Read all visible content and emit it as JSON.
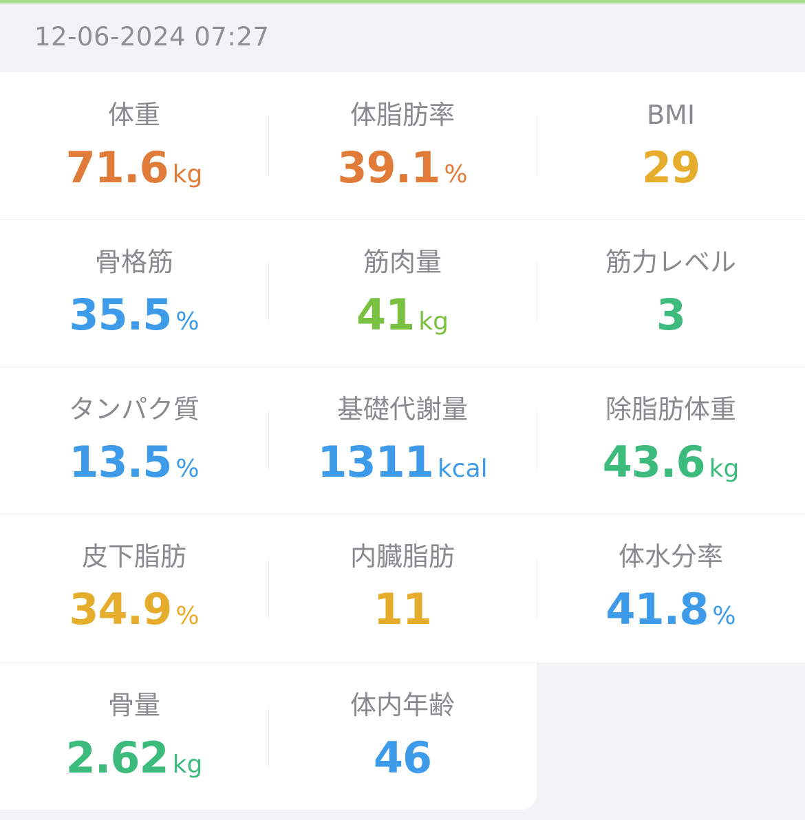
{
  "header": {
    "datetime": "12-06-2024 07:27"
  },
  "metrics": [
    {
      "label": "体重",
      "value": "71.6",
      "unit": "kg",
      "color": "#e07b39"
    },
    {
      "label": "体脂肪率",
      "value": "39.1",
      "unit": "%",
      "color": "#e07b39"
    },
    {
      "label": "BMI",
      "value": "29",
      "unit": "",
      "color": "#e6ad2c"
    },
    {
      "label": "骨格筋",
      "value": "35.5",
      "unit": "%",
      "color": "#3d9be9"
    },
    {
      "label": "筋肉量",
      "value": "41",
      "unit": "kg",
      "color": "#7ac142"
    },
    {
      "label": "筋力レベル",
      "value": "3",
      "unit": "",
      "color": "#3dbb7d"
    },
    {
      "label": "タンパク質",
      "value": "13.5",
      "unit": "%",
      "color": "#3d9be9"
    },
    {
      "label": "基礎代謝量",
      "value": "1311",
      "unit": "kcal",
      "color": "#3d9be9"
    },
    {
      "label": "除脂肪体重",
      "value": "43.6",
      "unit": "kg",
      "color": "#3dbb7d"
    },
    {
      "label": "皮下脂肪",
      "value": "34.9",
      "unit": "%",
      "color": "#e6ad2c"
    },
    {
      "label": "内臓脂肪",
      "value": "11",
      "unit": "",
      "color": "#e6ad2c"
    },
    {
      "label": "体水分率",
      "value": "41.8",
      "unit": "%",
      "color": "#3d9be9"
    },
    {
      "label": "骨量",
      "value": "2.62",
      "unit": "kg",
      "color": "#3dbb7d"
    },
    {
      "label": "体内年齢",
      "value": "46",
      "unit": "",
      "color": "#3d9be9"
    }
  ]
}
